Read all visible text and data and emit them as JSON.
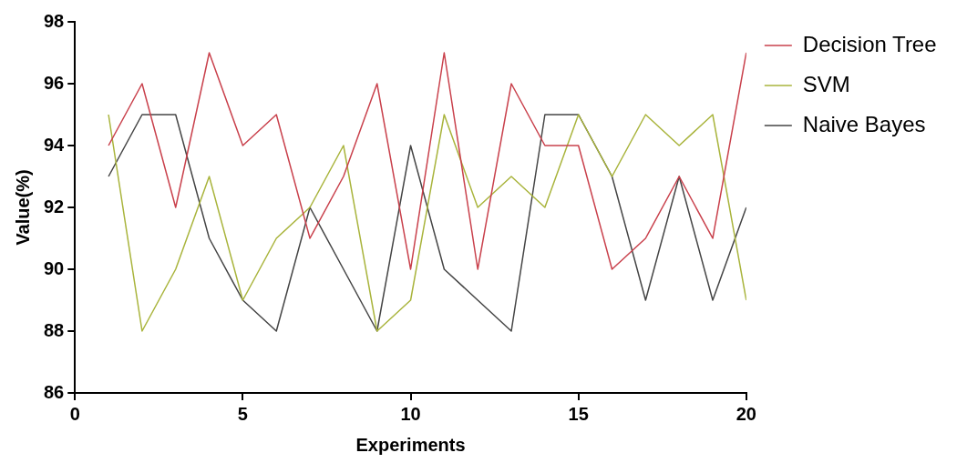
{
  "chart_data": {
    "type": "line",
    "xlabel": "Experiments",
    "ylabel": "Value(%)",
    "x": [
      1,
      2,
      3,
      4,
      5,
      6,
      7,
      8,
      9,
      10,
      11,
      12,
      13,
      14,
      15,
      16,
      17,
      18,
      19,
      20
    ],
    "series": [
      {
        "name": "Decision Tree",
        "color": "#c9414c",
        "values": [
          94,
          96,
          92,
          97,
          94,
          95,
          91,
          93,
          96,
          90,
          97,
          90,
          96,
          94,
          94,
          90,
          91,
          93,
          91,
          97
        ]
      },
      {
        "name": "SVM",
        "color": "#a9b43c",
        "values": [
          95,
          88,
          90,
          93,
          89,
          91,
          92,
          94,
          88,
          89,
          95,
          92,
          93,
          92,
          95,
          93,
          95,
          94,
          95,
          89
        ]
      },
      {
        "name": "Naive Bayes",
        "color": "#454545",
        "values": [
          93,
          95,
          95,
          91,
          89,
          88,
          92,
          90,
          88,
          94,
          90,
          89,
          88,
          95,
          95,
          93,
          89,
          93,
          89,
          92
        ]
      }
    ],
    "xlim": [
      0,
      20
    ],
    "xticks": [
      0,
      5,
      10,
      15,
      20
    ],
    "ylim": [
      86,
      98
    ],
    "yticks": [
      86,
      88,
      90,
      92,
      94,
      96,
      98
    ],
    "grid": false,
    "legend": "right",
    "marker": "none",
    "line_style": "solid"
  }
}
